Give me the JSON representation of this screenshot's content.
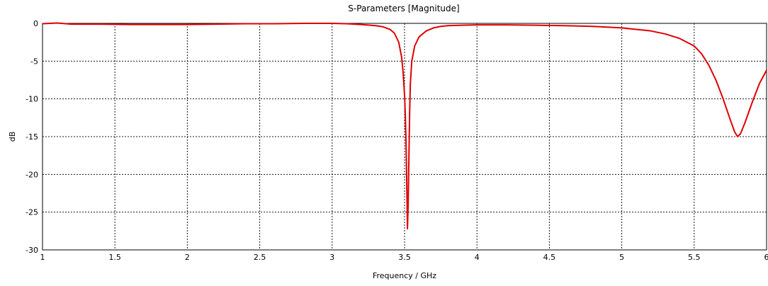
{
  "chart_data": {
    "type": "line",
    "title": "S-Parameters [Magnitude]",
    "xlabel": "Frequency / GHz",
    "ylabel": "dB",
    "xlim": [
      1,
      6
    ],
    "ylim": [
      -30,
      0
    ],
    "grid": true,
    "x_ticks": [
      "1",
      "1.5",
      "2",
      "2.5",
      "3",
      "3.5",
      "4",
      "4.5",
      "5",
      "5.5",
      "6"
    ],
    "y_ticks": [
      "0",
      "-5",
      "-10",
      "-15",
      "-20",
      "-25",
      "-30"
    ],
    "series": [
      {
        "color": "#e00000",
        "x": [
          1.0,
          1.1,
          1.2,
          1.4,
          1.6,
          1.8,
          2.0,
          2.2,
          2.4,
          2.6,
          2.8,
          3.0,
          3.1,
          3.2,
          3.3,
          3.35,
          3.4,
          3.43,
          3.46,
          3.48,
          3.49,
          3.5,
          3.505,
          3.51,
          3.515,
          3.52,
          3.525,
          3.53,
          3.535,
          3.54,
          3.55,
          3.57,
          3.6,
          3.65,
          3.7,
          3.75,
          3.8,
          3.9,
          4.0,
          4.2,
          4.4,
          4.6,
          4.8,
          5.0,
          5.1,
          5.2,
          5.3,
          5.4,
          5.5,
          5.55,
          5.6,
          5.65,
          5.7,
          5.75,
          5.78,
          5.8,
          5.82,
          5.85,
          5.9,
          5.95,
          6.0
        ],
        "y": [
          -0.05,
          0.05,
          -0.1,
          -0.1,
          -0.15,
          -0.15,
          -0.15,
          -0.1,
          -0.05,
          -0.05,
          0.0,
          0.0,
          -0.05,
          -0.15,
          -0.3,
          -0.45,
          -0.8,
          -1.3,
          -2.5,
          -4.5,
          -6.5,
          -9.5,
          -12.0,
          -15.5,
          -21.0,
          -27.2,
          -24.0,
          -18.0,
          -12.0,
          -8.0,
          -5.0,
          -3.0,
          -1.8,
          -1.0,
          -0.6,
          -0.4,
          -0.3,
          -0.25,
          -0.2,
          -0.2,
          -0.25,
          -0.3,
          -0.4,
          -0.6,
          -0.8,
          -1.0,
          -1.4,
          -2.0,
          -3.0,
          -4.0,
          -5.5,
          -7.5,
          -10.0,
          -12.8,
          -14.4,
          -15.0,
          -14.6,
          -13.2,
          -10.5,
          -8.0,
          -6.2
        ]
      }
    ]
  }
}
